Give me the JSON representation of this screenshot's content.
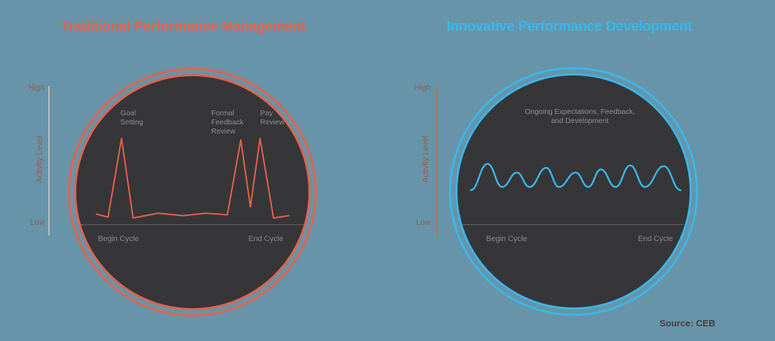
{
  "axis": {
    "high": "High",
    "low": "Low",
    "label": "Activity Level"
  },
  "cycle": {
    "begin": "Begin Cycle",
    "end": "End Cycle"
  },
  "source": "Source: CEB",
  "colors": {
    "background": "#6794a9",
    "circle_fill": "#363639",
    "traditional_accent": "#e8614b",
    "innovative_accent": "#3ab7e8",
    "label_gray": "#8e9193",
    "cycle_gray": "#87898b",
    "baseline_gray": "#8b8e90",
    "axis_line_left": "#b9c0c3",
    "axis_line_right": "#c96a59",
    "axis_text": "#8f6055",
    "source_text": "#3f3e40"
  },
  "chart_data": [
    {
      "type": "line",
      "style": "spiky",
      "title": "Traditional Performance Management",
      "color": "#e8614b",
      "ylabel": "Activity Level",
      "yticks": [
        "Low",
        "High"
      ],
      "xticks": [
        "Begin Cycle",
        "End Cycle"
      ],
      "x_range": [
        0,
        100
      ],
      "y_range": [
        0,
        100
      ],
      "grid": false,
      "annotations": [
        "Goal Setting",
        "Formal Feedback Review",
        "Pay Review"
      ],
      "points": [
        [
          0,
          5
        ],
        [
          6,
          1
        ],
        [
          13,
          100
        ],
        [
          19,
          0
        ],
        [
          32,
          6
        ],
        [
          45,
          3
        ],
        [
          57,
          6
        ],
        [
          68,
          4
        ],
        [
          75,
          98
        ],
        [
          80,
          14
        ],
        [
          85,
          100
        ],
        [
          92,
          0
        ],
        [
          100,
          3
        ]
      ]
    },
    {
      "type": "line",
      "style": "smooth",
      "title": "Innovative Performance Development",
      "color": "#3ab7e8",
      "ylabel": "Activity Level",
      "yticks": [
        "Low",
        "High"
      ],
      "xticks": [
        "Begin Cycle",
        "End Cycle"
      ],
      "x_range": [
        0,
        100
      ],
      "y_range": [
        0,
        100
      ],
      "grid": false,
      "annotations": [
        "Ongoing Expectations, Feedback, and Development"
      ],
      "points": [
        [
          0,
          35
        ],
        [
          8,
          68
        ],
        [
          15,
          39
        ],
        [
          22,
          57
        ],
        [
          28,
          39
        ],
        [
          36,
          63
        ],
        [
          42,
          39
        ],
        [
          50,
          57
        ],
        [
          56,
          39
        ],
        [
          62,
          61
        ],
        [
          69,
          39
        ],
        [
          76,
          66
        ],
        [
          83,
          39
        ],
        [
          92,
          65
        ],
        [
          100,
          35
        ]
      ]
    }
  ]
}
